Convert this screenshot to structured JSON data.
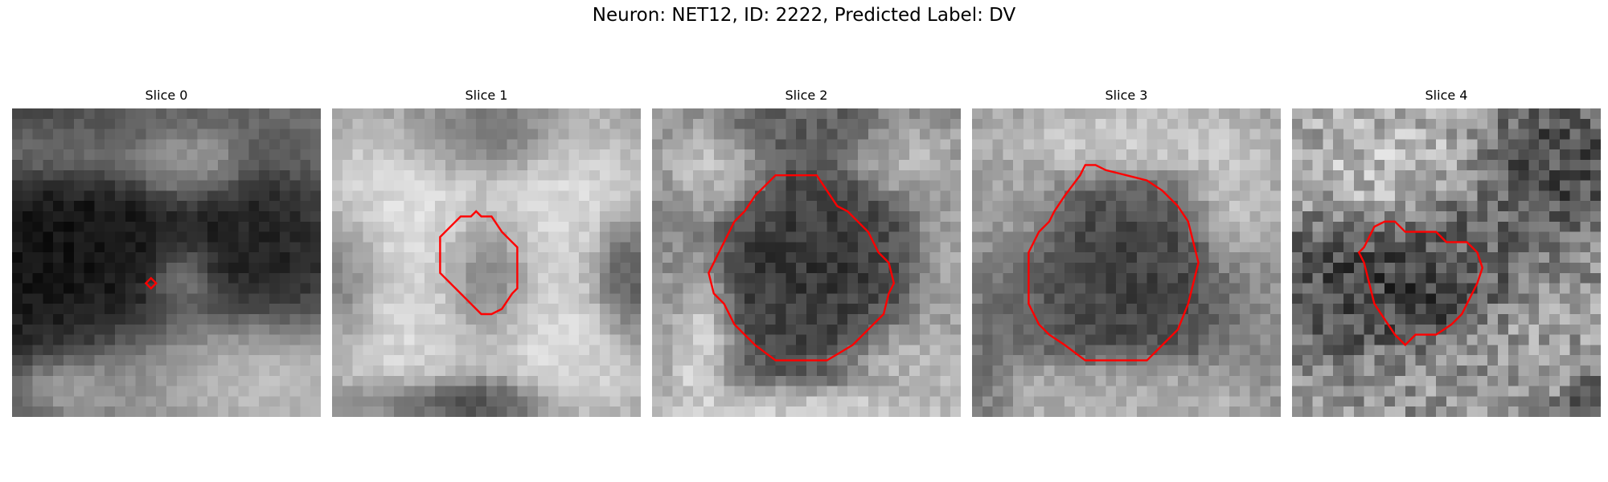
{
  "figure": {
    "title": "Neuron: NET12, ID: 2222, Predicted Label: DV"
  },
  "panels": [
    {
      "title": "Slice 0",
      "blobs": [
        [
          0.25,
          0.45,
          0.55,
          0.55,
          0.02
        ],
        [
          0.1,
          0.35,
          0.3,
          0.35,
          0.05
        ],
        [
          0.8,
          0.45,
          0.3,
          0.25,
          0.1
        ],
        [
          0.55,
          0.18,
          0.2,
          0.12,
          0.85
        ],
        [
          0.15,
          0.15,
          0.3,
          0.12,
          0.8
        ],
        [
          0.65,
          0.85,
          0.4,
          0.2,
          0.85
        ],
        [
          0.2,
          0.9,
          0.2,
          0.1,
          0.8
        ],
        [
          0.55,
          0.55,
          0.1,
          0.1,
          0.75
        ],
        [
          0.95,
          0.1,
          0.1,
          0.15,
          0.4
        ],
        [
          0.45,
          0.02,
          0.4,
          0.06,
          0.45
        ]
      ],
      "base": 0.55,
      "noise": 0.05,
      "contour": [
        [
          13,
          17
        ],
        [
          13.5,
          16.5
        ],
        [
          14,
          17
        ],
        [
          13.5,
          17.5
        ]
      ]
    },
    {
      "title": "Slice 1",
      "blobs": [
        [
          0.25,
          0.3,
          0.3,
          0.25,
          0.9
        ],
        [
          0.75,
          0.28,
          0.25,
          0.25,
          0.9
        ],
        [
          0.25,
          0.75,
          0.25,
          0.3,
          0.88
        ],
        [
          0.75,
          0.78,
          0.25,
          0.25,
          0.9
        ],
        [
          0.5,
          0.55,
          0.12,
          0.2,
          0.45
        ],
        [
          0.5,
          0.1,
          0.25,
          0.12,
          0.4
        ],
        [
          0.4,
          0.95,
          0.3,
          0.08,
          0.15
        ],
        [
          0.95,
          0.55,
          0.1,
          0.2,
          0.3
        ],
        [
          0.05,
          0.55,
          0.1,
          0.2,
          0.45
        ]
      ],
      "base": 0.55,
      "noise": 0.06,
      "contour": [
        [
          14.5,
          10.5
        ],
        [
          15.5,
          10.5
        ],
        [
          16.5,
          12
        ],
        [
          18,
          13.5
        ],
        [
          18,
          17.5
        ],
        [
          17.5,
          18
        ],
        [
          16.5,
          19.5
        ],
        [
          15.5,
          20
        ],
        [
          14.5,
          20
        ],
        [
          14,
          19.5
        ],
        [
          13.5,
          19
        ],
        [
          12,
          17.5
        ],
        [
          10.5,
          16
        ],
        [
          10.5,
          12.5
        ],
        [
          12,
          11
        ],
        [
          12.5,
          10.5
        ],
        [
          13.5,
          10.5
        ],
        [
          14,
          10
        ]
      ]
    },
    {
      "title": "Slice 2",
      "blobs": [
        [
          0.5,
          0.5,
          0.32,
          0.35,
          0.15
        ],
        [
          0.15,
          0.75,
          0.1,
          0.25,
          0.88
        ],
        [
          0.85,
          0.85,
          0.2,
          0.15,
          0.75
        ],
        [
          0.2,
          0.2,
          0.15,
          0.15,
          0.8
        ],
        [
          0.8,
          0.15,
          0.15,
          0.12,
          0.75
        ],
        [
          0.5,
          0.05,
          0.3,
          0.1,
          0.35
        ],
        [
          0.05,
          0.5,
          0.08,
          0.3,
          0.55
        ],
        [
          0.95,
          0.5,
          0.08,
          0.25,
          0.65
        ],
        [
          0.5,
          0.97,
          0.4,
          0.06,
          0.85
        ]
      ],
      "base": 0.6,
      "noise": 0.09,
      "contour": [
        [
          12,
          6.5
        ],
        [
          16,
          6.5
        ],
        [
          17,
          8
        ],
        [
          18,
          9.5
        ],
        [
          19,
          10
        ],
        [
          20,
          11
        ],
        [
          21,
          12
        ],
        [
          22,
          14
        ],
        [
          23,
          15
        ],
        [
          23.5,
          17
        ],
        [
          23,
          18
        ],
        [
          22.5,
          20
        ],
        [
          21,
          21.5
        ],
        [
          19.5,
          23
        ],
        [
          17,
          24.5
        ],
        [
          12,
          24.5
        ],
        [
          10,
          23
        ],
        [
          8,
          21
        ],
        [
          7,
          19
        ],
        [
          6,
          18
        ],
        [
          5.5,
          16
        ],
        [
          6,
          15
        ],
        [
          7,
          13
        ],
        [
          8,
          11
        ],
        [
          9,
          10
        ],
        [
          10,
          8.5
        ]
      ]
    },
    {
      "title": "Slice 3",
      "blobs": [
        [
          0.5,
          0.55,
          0.32,
          0.32,
          0.2
        ],
        [
          0.5,
          0.12,
          0.35,
          0.1,
          0.85
        ],
        [
          0.15,
          0.25,
          0.12,
          0.2,
          0.65
        ],
        [
          0.85,
          0.3,
          0.12,
          0.2,
          0.8
        ],
        [
          0.5,
          0.92,
          0.4,
          0.1,
          0.75
        ],
        [
          0.05,
          0.8,
          0.1,
          0.2,
          0.4
        ],
        [
          0.95,
          0.8,
          0.1,
          0.2,
          0.55
        ]
      ],
      "base": 0.62,
      "noise": 0.08,
      "contour": [
        [
          12,
          5.5
        ],
        [
          13,
          6
        ],
        [
          15,
          6.5
        ],
        [
          17,
          7
        ],
        [
          18.5,
          8
        ],
        [
          20,
          9.5
        ],
        [
          21,
          11
        ],
        [
          21.5,
          13
        ],
        [
          22,
          15
        ],
        [
          21.5,
          17
        ],
        [
          21,
          19
        ],
        [
          20,
          21.5
        ],
        [
          18.5,
          23
        ],
        [
          17,
          24.5
        ],
        [
          11,
          24.5
        ],
        [
          9,
          23
        ],
        [
          7.5,
          22
        ],
        [
          6.5,
          21
        ],
        [
          5.5,
          19
        ],
        [
          5.5,
          14
        ],
        [
          6.5,
          12
        ],
        [
          7.5,
          11
        ],
        [
          8,
          10
        ],
        [
          9,
          8.5
        ],
        [
          10.5,
          6.5
        ],
        [
          11,
          5.5
        ]
      ]
    },
    {
      "title": "Slice 4",
      "blobs": [
        [
          0.4,
          0.55,
          0.25,
          0.18,
          0.2
        ],
        [
          0.15,
          0.55,
          0.15,
          0.2,
          0.25
        ],
        [
          0.85,
          0.2,
          0.2,
          0.2,
          0.25
        ],
        [
          0.3,
          0.2,
          0.25,
          0.2,
          0.75
        ],
        [
          0.8,
          0.8,
          0.2,
          0.15,
          0.6
        ],
        [
          0.6,
          0.4,
          0.2,
          0.15,
          0.4
        ],
        [
          0.95,
          0.95,
          0.08,
          0.08,
          0.25
        ]
      ],
      "base": 0.58,
      "noise": 0.18,
      "contour": [
        [
          9,
          11
        ],
        [
          10,
          11
        ],
        [
          11,
          12
        ],
        [
          14,
          12
        ],
        [
          15,
          13
        ],
        [
          17,
          13
        ],
        [
          18,
          14
        ],
        [
          18.5,
          15.5
        ],
        [
          18,
          17
        ],
        [
          17.5,
          18
        ],
        [
          17,
          19
        ],
        [
          16.5,
          20
        ],
        [
          15.5,
          21
        ],
        [
          14,
          22
        ],
        [
          12,
          22
        ],
        [
          11,
          23
        ],
        [
          10,
          22
        ],
        [
          9,
          20.5
        ],
        [
          8,
          19
        ],
        [
          7.5,
          17
        ],
        [
          7,
          15
        ],
        [
          6.5,
          14
        ],
        [
          7,
          13.5
        ],
        [
          7.5,
          12.5
        ],
        [
          8,
          11.5
        ]
      ]
    }
  ],
  "colors": {
    "contour": "#ff0000",
    "text": "#000000",
    "background": "#ffffff"
  }
}
